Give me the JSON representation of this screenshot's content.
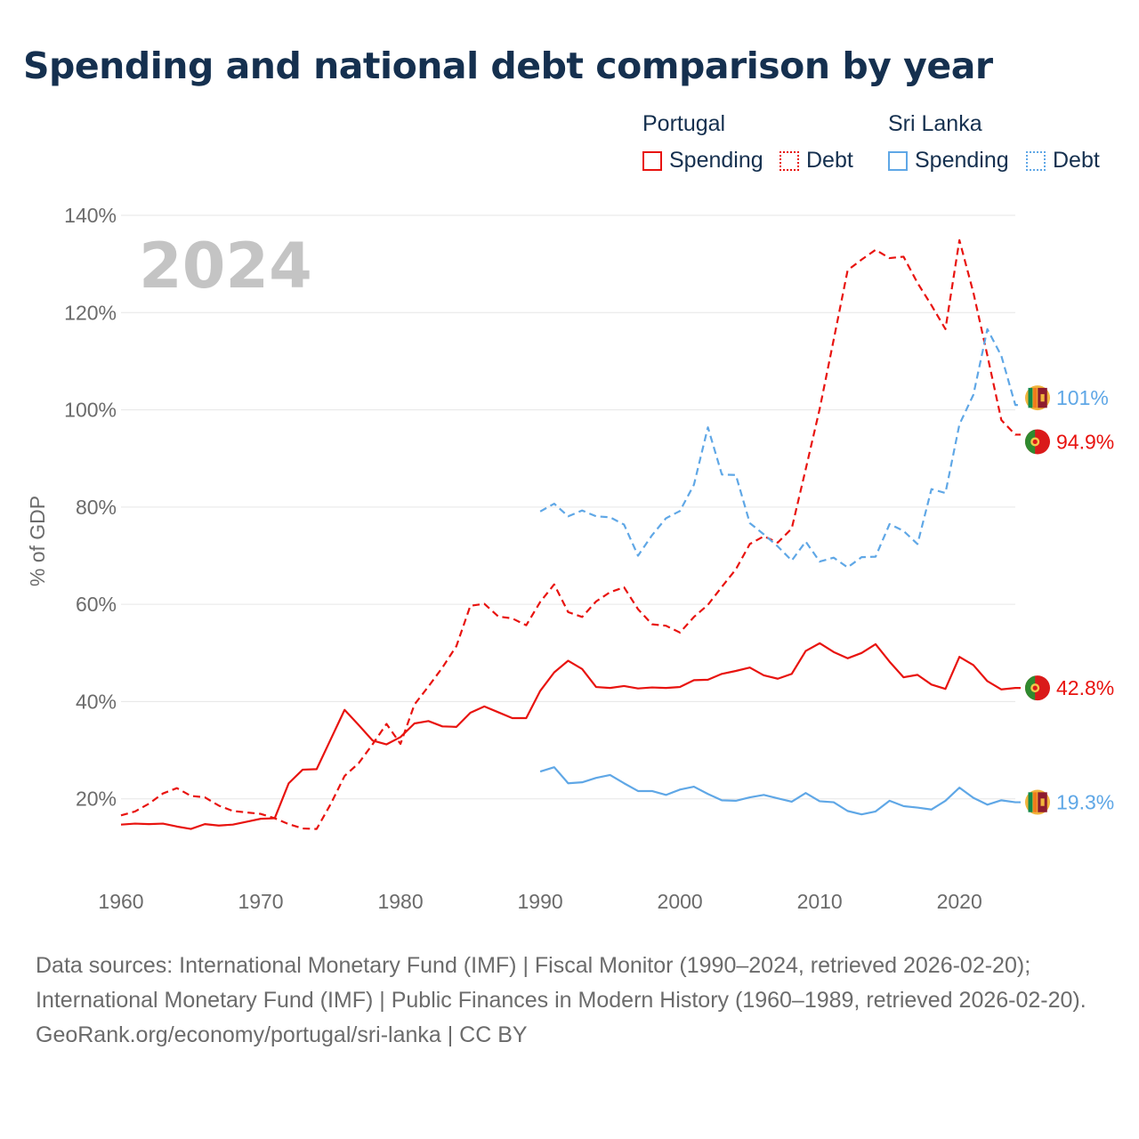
{
  "title": "Spending and national debt comparison by year",
  "legend": {
    "groups": [
      {
        "name": "Portugal",
        "spending_label": "Spending",
        "debt_label": "Debt",
        "color": "#e8130f"
      },
      {
        "name": "Sri Lanka",
        "spending_label": "Spending",
        "debt_label": "Debt",
        "color": "#5fa7e6"
      }
    ]
  },
  "footer": {
    "sources": "Data sources: International Monetary Fund (IMF) | Fiscal Monitor (1990–2024, retrieved 2026-02-20); International Monetary Fund (IMF) | Public Finances in Modern History (1960–1989, retrieved 2026-02-20).",
    "credit": "GeoRank.org/economy/portugal/sri-lanka | CC BY"
  },
  "chart_data": {
    "type": "line",
    "title": "Spending and national debt comparison by year",
    "year_label": "2024",
    "ylabel": "% of GDP",
    "xlabel": "",
    "xlim": [
      1960,
      2024
    ],
    "ylim": [
      0,
      140
    ],
    "x_ticks": [
      1960,
      1970,
      1980,
      1990,
      2000,
      2010,
      2020
    ],
    "y_ticks": [
      20,
      40,
      60,
      80,
      100,
      120,
      140
    ],
    "y_tick_labels": [
      "20%",
      "40%",
      "60%",
      "80%",
      "100%",
      "120%",
      "140%"
    ],
    "grid": true,
    "series": [
      {
        "name": "Portugal Spending",
        "country": "Portugal",
        "style": "solid",
        "color": "#e8130f",
        "end_label": "42.8%",
        "x": [
          1960,
          1961,
          1962,
          1963,
          1964,
          1965,
          1966,
          1967,
          1968,
          1969,
          1970,
          1971,
          1972,
          1973,
          1974,
          1975,
          1976,
          1977,
          1978,
          1979,
          1980,
          1981,
          1982,
          1983,
          1984,
          1985,
          1986,
          1987,
          1988,
          1989,
          1990,
          1991,
          1992,
          1993,
          1994,
          1995,
          1996,
          1997,
          1998,
          1999,
          2000,
          2001,
          2002,
          2003,
          2004,
          2005,
          2006,
          2007,
          2008,
          2009,
          2010,
          2011,
          2012,
          2013,
          2014,
          2015,
          2016,
          2017,
          2018,
          2019,
          2020,
          2021,
          2022,
          2023,
          2024
        ],
        "values": [
          14.7,
          14.9,
          14.8,
          14.9,
          14.3,
          13.8,
          14.8,
          14.5,
          14.7,
          15.3,
          15.9,
          16.0,
          23.2,
          26.0,
          26.1,
          32.2,
          38.3,
          35.2,
          32.0,
          31.2,
          32.7,
          35.5,
          36.0,
          34.9,
          34.8,
          37.7,
          39.0,
          37.8,
          36.6,
          36.6,
          42.2,
          46.0,
          48.4,
          46.7,
          43.0,
          42.8,
          43.2,
          42.7,
          42.9,
          42.8,
          43.0,
          44.4,
          44.5,
          45.7,
          46.3,
          47.0,
          45.4,
          44.7,
          45.7,
          50.4,
          52.0,
          50.2,
          48.9,
          50.0,
          51.8,
          48.2,
          45.0,
          45.5,
          43.5,
          42.6,
          49.2,
          47.5,
          44.2,
          42.5,
          42.8
        ]
      },
      {
        "name": "Portugal Debt",
        "country": "Portugal",
        "style": "dashed",
        "color": "#e8130f",
        "end_label": "94.9%",
        "x": [
          1960,
          1961,
          1962,
          1963,
          1964,
          1965,
          1966,
          1967,
          1968,
          1969,
          1970,
          1971,
          1972,
          1973,
          1974,
          1975,
          1976,
          1977,
          1978,
          1979,
          1980,
          1981,
          1982,
          1983,
          1984,
          1985,
          1986,
          1987,
          1988,
          1989,
          1990,
          1991,
          1992,
          1993,
          1994,
          1995,
          1996,
          1997,
          1998,
          1999,
          2000,
          2001,
          2002,
          2003,
          2004,
          2005,
          2006,
          2007,
          2008,
          2009,
          2010,
          2011,
          2012,
          2013,
          2014,
          2015,
          2016,
          2017,
          2018,
          2019,
          2020,
          2021,
          2022,
          2023,
          2024
        ],
        "values": [
          16.6,
          17.4,
          19.0,
          21.1,
          22.2,
          20.6,
          20.3,
          18.6,
          17.5,
          17.2,
          16.9,
          16.0,
          14.8,
          13.9,
          13.8,
          18.9,
          24.7,
          27.3,
          31.2,
          35.4,
          31.3,
          39.4,
          43.1,
          47.0,
          51.4,
          59.7,
          60.1,
          57.5,
          57.1,
          55.7,
          60.5,
          64.1,
          58.4,
          57.4,
          60.6,
          62.5,
          63.5,
          59.0,
          55.9,
          55.6,
          54.2,
          57.4,
          59.9,
          63.6,
          67.2,
          72.4,
          74.0,
          72.7,
          75.6,
          87.8,
          100.2,
          114.4,
          128.7,
          130.9,
          132.9,
          131.2,
          131.5,
          126.1,
          121.5,
          116.6,
          134.9,
          124.1,
          111.2,
          97.9,
          94.9
        ]
      },
      {
        "name": "Sri Lanka Spending",
        "country": "Sri Lanka",
        "style": "solid",
        "color": "#5fa7e6",
        "end_label": "19.3%",
        "x": [
          1990,
          1991,
          1992,
          1993,
          1994,
          1995,
          1996,
          1997,
          1998,
          1999,
          2000,
          2001,
          2002,
          2003,
          2004,
          2005,
          2006,
          2007,
          2008,
          2009,
          2010,
          2011,
          2012,
          2013,
          2014,
          2015,
          2016,
          2017,
          2018,
          2019,
          2020,
          2021,
          2022,
          2023,
          2024
        ],
        "values": [
          25.6,
          26.5,
          23.2,
          23.4,
          24.3,
          24.9,
          23.2,
          21.6,
          21.6,
          20.8,
          21.9,
          22.5,
          21.0,
          19.7,
          19.6,
          20.3,
          20.8,
          20.1,
          19.4,
          21.2,
          19.5,
          19.3,
          17.5,
          16.8,
          17.4,
          19.6,
          18.5,
          18.2,
          17.8,
          19.6,
          22.3,
          20.2,
          18.8,
          19.7,
          19.3
        ]
      },
      {
        "name": "Sri Lanka Debt",
        "country": "Sri Lanka",
        "style": "dashed",
        "color": "#5fa7e6",
        "end_label": "101%",
        "x": [
          1990,
          1991,
          1992,
          1993,
          1994,
          1995,
          1996,
          1997,
          1998,
          1999,
          2000,
          2001,
          2002,
          2003,
          2004,
          2005,
          2006,
          2007,
          2008,
          2009,
          2010,
          2011,
          2012,
          2013,
          2014,
          2015,
          2016,
          2017,
          2018,
          2019,
          2020,
          2021,
          2022,
          2023,
          2024
        ],
        "values": [
          79.1,
          80.7,
          78.1,
          79.3,
          78.1,
          77.9,
          76.4,
          70.0,
          74.2,
          77.7,
          79.2,
          84.6,
          96.4,
          86.7,
          86.6,
          76.7,
          74.4,
          71.9,
          69.0,
          72.9,
          68.8,
          69.6,
          67.6,
          69.7,
          69.8,
          76.5,
          75.1,
          72.4,
          83.7,
          82.9,
          97.0,
          103.1,
          116.6,
          111.1,
          101.0
        ]
      }
    ]
  }
}
